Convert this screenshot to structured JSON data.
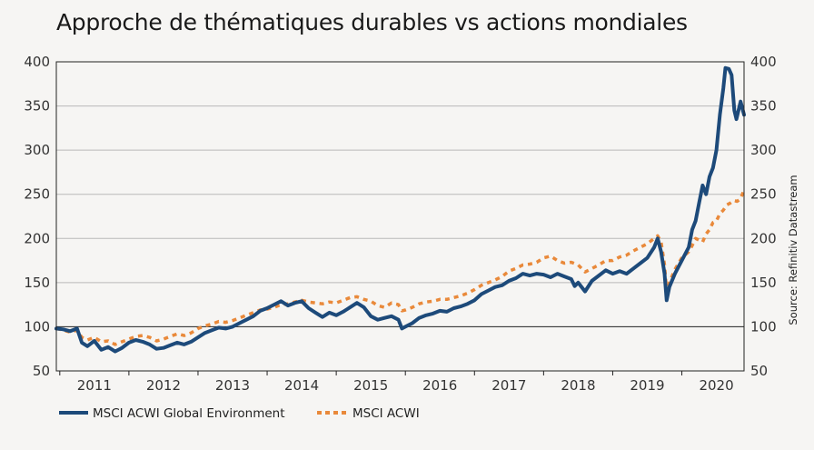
{
  "title": "Approche de thématiques durables vs actions mondiales",
  "source": "Source: Refinitiv Datastream",
  "chart_data": {
    "type": "line",
    "title": "Approche de thématiques durables vs actions mondiales",
    "xlabel": "",
    "ylabel": "",
    "ylim": [
      50,
      400
    ],
    "y_ticks": [
      400,
      350,
      300,
      250,
      200,
      150,
      100,
      50
    ],
    "x_ticks": [
      "2011",
      "2012",
      "2013",
      "2014",
      "2015",
      "2016",
      "2017",
      "2018",
      "2019",
      "2020"
    ],
    "xlim": [
      2010.95,
      2020.9
    ],
    "grid": "horizontal",
    "legend": "bottom-left",
    "series": [
      {
        "name": "MSCI ACWI Global Environment",
        "color": "#1d4a7a",
        "style": "solid",
        "points": [
          [
            2010.95,
            98
          ],
          [
            2011.05,
            97
          ],
          [
            2011.15,
            95
          ],
          [
            2011.25,
            98
          ],
          [
            2011.32,
            82
          ],
          [
            2011.4,
            78
          ],
          [
            2011.5,
            84
          ],
          [
            2011.6,
            74
          ],
          [
            2011.7,
            77
          ],
          [
            2011.8,
            72
          ],
          [
            2011.9,
            76
          ],
          [
            2012.0,
            82
          ],
          [
            2012.1,
            85
          ],
          [
            2012.2,
            83
          ],
          [
            2012.3,
            80
          ],
          [
            2012.4,
            75
          ],
          [
            2012.5,
            76
          ],
          [
            2012.6,
            79
          ],
          [
            2012.7,
            82
          ],
          [
            2012.8,
            80
          ],
          [
            2012.9,
            83
          ],
          [
            2013.0,
            88
          ],
          [
            2013.1,
            93
          ],
          [
            2013.2,
            96
          ],
          [
            2013.3,
            99
          ],
          [
            2013.4,
            98
          ],
          [
            2013.5,
            100
          ],
          [
            2013.6,
            104
          ],
          [
            2013.7,
            108
          ],
          [
            2013.8,
            112
          ],
          [
            2013.9,
            118
          ],
          [
            2014.0,
            121
          ],
          [
            2014.1,
            125
          ],
          [
            2014.2,
            129
          ],
          [
            2014.3,
            124
          ],
          [
            2014.4,
            127
          ],
          [
            2014.5,
            129
          ],
          [
            2014.6,
            121
          ],
          [
            2014.7,
            116
          ],
          [
            2014.8,
            111
          ],
          [
            2014.9,
            116
          ],
          [
            2015.0,
            113
          ],
          [
            2015.1,
            117
          ],
          [
            2015.2,
            122
          ],
          [
            2015.3,
            127
          ],
          [
            2015.4,
            122
          ],
          [
            2015.5,
            112
          ],
          [
            2015.6,
            108
          ],
          [
            2015.7,
            110
          ],
          [
            2015.8,
            112
          ],
          [
            2015.9,
            108
          ],
          [
            2015.95,
            98
          ],
          [
            2016.0,
            100
          ],
          [
            2016.1,
            104
          ],
          [
            2016.2,
            110
          ],
          [
            2016.3,
            113
          ],
          [
            2016.4,
            115
          ],
          [
            2016.5,
            118
          ],
          [
            2016.6,
            117
          ],
          [
            2016.7,
            121
          ],
          [
            2016.8,
            123
          ],
          [
            2016.9,
            126
          ],
          [
            2017.0,
            130
          ],
          [
            2017.1,
            137
          ],
          [
            2017.2,
            141
          ],
          [
            2017.3,
            145
          ],
          [
            2017.4,
            147
          ],
          [
            2017.5,
            152
          ],
          [
            2017.6,
            155
          ],
          [
            2017.7,
            160
          ],
          [
            2017.8,
            158
          ],
          [
            2017.9,
            160
          ],
          [
            2018.0,
            159
          ],
          [
            2018.1,
            156
          ],
          [
            2018.2,
            160
          ],
          [
            2018.3,
            157
          ],
          [
            2018.4,
            154
          ],
          [
            2018.45,
            146
          ],
          [
            2018.5,
            150
          ],
          [
            2018.6,
            140
          ],
          [
            2018.7,
            152
          ],
          [
            2018.8,
            158
          ],
          [
            2018.9,
            164
          ],
          [
            2019.0,
            160
          ],
          [
            2019.1,
            163
          ],
          [
            2019.2,
            160
          ],
          [
            2019.3,
            166
          ],
          [
            2019.4,
            172
          ],
          [
            2019.5,
            178
          ],
          [
            2019.6,
            190
          ],
          [
            2019.65,
            200
          ],
          [
            2019.7,
            185
          ],
          [
            2019.75,
            160
          ],
          [
            2019.78,
            130
          ],
          [
            2019.82,
            145
          ],
          [
            2019.9,
            160
          ],
          [
            2020.0,
            175
          ],
          [
            2020.1,
            190
          ],
          [
            2020.15,
            210
          ],
          [
            2020.2,
            220
          ],
          [
            2020.25,
            240
          ],
          [
            2020.3,
            260
          ],
          [
            2020.35,
            250
          ],
          [
            2020.4,
            270
          ],
          [
            2020.45,
            280
          ],
          [
            2020.5,
            300
          ],
          [
            2020.55,
            340
          ],
          [
            2020.6,
            370
          ],
          [
            2020.63,
            393
          ],
          [
            2020.68,
            392
          ],
          [
            2020.72,
            385
          ],
          [
            2020.76,
            345
          ],
          [
            2020.79,
            335
          ],
          [
            2020.82,
            345
          ],
          [
            2020.85,
            355
          ],
          [
            2020.9,
            340
          ]
        ]
      },
      {
        "name": "MSCI ACWI",
        "color": "#e9893a",
        "style": "dashed",
        "points": [
          [
            2010.95,
            98
          ],
          [
            2011.05,
            96
          ],
          [
            2011.15,
            94
          ],
          [
            2011.25,
            96
          ],
          [
            2011.32,
            88
          ],
          [
            2011.4,
            85
          ],
          [
            2011.5,
            88
          ],
          [
            2011.6,
            83
          ],
          [
            2011.7,
            84
          ],
          [
            2011.8,
            80
          ],
          [
            2011.9,
            83
          ],
          [
            2012.0,
            86
          ],
          [
            2012.1,
            89
          ],
          [
            2012.2,
            90
          ],
          [
            2012.3,
            88
          ],
          [
            2012.4,
            84
          ],
          [
            2012.5,
            86
          ],
          [
            2012.6,
            89
          ],
          [
            2012.7,
            92
          ],
          [
            2012.8,
            90
          ],
          [
            2012.9,
            93
          ],
          [
            2013.0,
            98
          ],
          [
            2013.1,
            101
          ],
          [
            2013.2,
            103
          ],
          [
            2013.3,
            106
          ],
          [
            2013.4,
            105
          ],
          [
            2013.5,
            107
          ],
          [
            2013.6,
            110
          ],
          [
            2013.7,
            113
          ],
          [
            2013.8,
            116
          ],
          [
            2013.9,
            119
          ],
          [
            2014.0,
            120
          ],
          [
            2014.1,
            122
          ],
          [
            2014.2,
            125
          ],
          [
            2014.3,
            126
          ],
          [
            2014.4,
            128
          ],
          [
            2014.5,
            130
          ],
          [
            2014.6,
            128
          ],
          [
            2014.7,
            127
          ],
          [
            2014.8,
            126
          ],
          [
            2014.9,
            128
          ],
          [
            2015.0,
            127
          ],
          [
            2015.1,
            130
          ],
          [
            2015.2,
            133
          ],
          [
            2015.3,
            134
          ],
          [
            2015.4,
            131
          ],
          [
            2015.5,
            129
          ],
          [
            2015.6,
            124
          ],
          [
            2015.7,
            122
          ],
          [
            2015.8,
            127
          ],
          [
            2015.9,
            125
          ],
          [
            2015.95,
            118
          ],
          [
            2016.0,
            119
          ],
          [
            2016.1,
            122
          ],
          [
            2016.2,
            126
          ],
          [
            2016.3,
            128
          ],
          [
            2016.4,
            129
          ],
          [
            2016.5,
            131
          ],
          [
            2016.6,
            131
          ],
          [
            2016.7,
            133
          ],
          [
            2016.8,
            135
          ],
          [
            2016.9,
            138
          ],
          [
            2017.0,
            142
          ],
          [
            2017.1,
            147
          ],
          [
            2017.2,
            150
          ],
          [
            2017.3,
            153
          ],
          [
            2017.4,
            157
          ],
          [
            2017.5,
            163
          ],
          [
            2017.6,
            166
          ],
          [
            2017.7,
            170
          ],
          [
            2017.8,
            171
          ],
          [
            2017.9,
            173
          ],
          [
            2018.0,
            178
          ],
          [
            2018.1,
            180
          ],
          [
            2018.2,
            175
          ],
          [
            2018.3,
            172
          ],
          [
            2018.4,
            173
          ],
          [
            2018.5,
            170
          ],
          [
            2018.6,
            162
          ],
          [
            2018.7,
            166
          ],
          [
            2018.8,
            170
          ],
          [
            2018.9,
            175
          ],
          [
            2019.0,
            175
          ],
          [
            2019.1,
            179
          ],
          [
            2019.2,
            181
          ],
          [
            2019.3,
            186
          ],
          [
            2019.4,
            190
          ],
          [
            2019.5,
            194
          ],
          [
            2019.6,
            200
          ],
          [
            2019.65,
            203
          ],
          [
            2019.7,
            196
          ],
          [
            2019.75,
            170
          ],
          [
            2019.78,
            140
          ],
          [
            2019.82,
            150
          ],
          [
            2019.9,
            165
          ],
          [
            2020.0,
            178
          ],
          [
            2020.1,
            185
          ],
          [
            2020.15,
            192
          ],
          [
            2020.2,
            200
          ],
          [
            2020.25,
            198
          ],
          [
            2020.3,
            196
          ],
          [
            2020.35,
            205
          ],
          [
            2020.4,
            210
          ],
          [
            2020.45,
            218
          ],
          [
            2020.5,
            220
          ],
          [
            2020.55,
            228
          ],
          [
            2020.6,
            232
          ],
          [
            2020.65,
            238
          ],
          [
            2020.7,
            240
          ],
          [
            2020.75,
            243
          ],
          [
            2020.8,
            242
          ],
          [
            2020.85,
            245
          ],
          [
            2020.9,
            255
          ]
        ]
      }
    ]
  }
}
